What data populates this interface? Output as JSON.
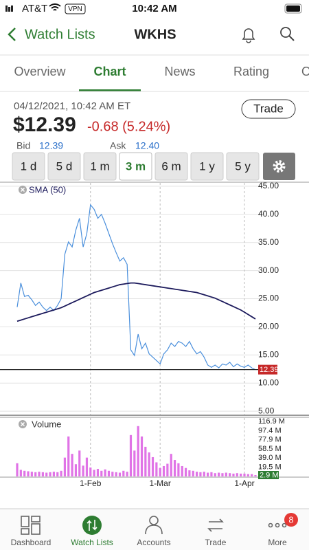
{
  "status_bar": {
    "carrier": "AT&T",
    "vpn": "VPN",
    "time": "10:42 AM"
  },
  "header": {
    "back": "Watch Lists",
    "title": "WKHS"
  },
  "tabs": {
    "items": [
      "Overview",
      "Chart",
      "News",
      "Rating",
      "O"
    ],
    "active": "Chart"
  },
  "quote": {
    "timestamp": "04/12/2021, 10:42 AM ET",
    "price": "$12.39",
    "change": "-0.68 (5.24%)",
    "trade": "Trade",
    "bid_label": "Bid",
    "bid": "12.39",
    "ask_label": "Ask",
    "ask": "12.40"
  },
  "ranges": {
    "items": [
      "1 d",
      "5 d",
      "1 m",
      "3 m",
      "6 m",
      "1 y",
      "5 y"
    ],
    "selected": "3 m"
  },
  "chart_data": [
    {
      "type": "line",
      "series": [
        {
          "color": "#4a8fdc",
          "values": [
            23.5,
            27.8,
            25.4,
            25.6,
            24.8,
            23.8,
            24.4,
            23.5,
            22.9,
            23.5,
            22.9,
            23.8,
            25.0,
            32.9,
            35.1,
            34.2,
            37.2,
            39.3,
            34.2,
            36.6,
            41.7,
            40.9,
            39.3,
            40.0,
            38.4,
            36.6,
            34.8,
            33.2,
            31.7,
            32.3,
            31.1,
            15.9,
            14.9,
            18.7,
            16.1,
            17.1,
            15.2,
            14.6,
            14.0,
            13.4,
            15.2,
            15.9,
            17.1,
            16.5,
            17.4,
            17.1,
            16.5,
            17.4,
            16.1,
            15.2,
            15.6,
            14.6,
            13.2,
            12.8,
            13.2,
            12.7,
            13.4,
            13.2,
            13.7,
            12.9,
            13.4,
            13.0,
            12.8,
            13.2,
            12.7,
            12.39
          ]
        },
        {
          "name": "SMA (50)",
          "color": "#1c1a5c",
          "values": [
            21.0,
            21.2,
            21.4,
            21.6,
            21.8,
            22.0,
            22.2,
            22.4,
            22.6,
            22.8,
            23.0,
            23.2,
            23.4,
            23.7,
            24.0,
            24.3,
            24.6,
            24.9,
            25.2,
            25.5,
            25.8,
            26.1,
            26.3,
            26.5,
            26.7,
            26.9,
            27.1,
            27.3,
            27.5,
            27.6,
            27.7,
            27.8,
            27.8,
            27.7,
            27.6,
            27.5,
            27.4,
            27.3,
            27.2,
            27.1,
            27.0,
            26.9,
            26.8,
            26.7,
            26.6,
            26.5,
            26.4,
            26.3,
            26.2,
            26.1,
            25.9,
            25.7,
            25.5,
            25.3,
            25.1,
            24.8,
            24.5,
            24.2,
            23.9,
            23.6,
            23.3,
            23.0,
            22.6,
            22.2,
            21.8,
            21.4
          ]
        }
      ],
      "last_price": 12.39,
      "last_price_color": "#c62828",
      "ylim": [
        4.4,
        45.6
      ],
      "yticks": [
        {
          "value": 5,
          "label": "5.00"
        },
        {
          "value": 10,
          "label": "10.00"
        },
        {
          "value": 15,
          "label": "15.00"
        },
        {
          "value": 20,
          "label": "20.00"
        },
        {
          "value": 25,
          "label": "25.00"
        },
        {
          "value": 30,
          "label": "30.00"
        },
        {
          "value": 35,
          "label": "35.00"
        },
        {
          "value": 40,
          "label": "40.00"
        },
        {
          "value": 45,
          "label": "45.00"
        }
      ],
      "grid": true
    },
    {
      "type": "bar",
      "categories": [
        null,
        null,
        null,
        null,
        null,
        null,
        null,
        null,
        null,
        null,
        null,
        null,
        null,
        null,
        null,
        null,
        null,
        null,
        null,
        null,
        "1-Feb",
        null,
        null,
        null,
        null,
        null,
        null,
        null,
        null,
        null,
        null,
        null,
        null,
        null,
        null,
        null,
        null,
        null,
        null,
        "1-Mar",
        null,
        null,
        null,
        null,
        null,
        null,
        null,
        null,
        null,
        null,
        null,
        null,
        null,
        null,
        null,
        null,
        null,
        null,
        null,
        null,
        null,
        null,
        "1-Apr",
        null,
        null,
        null
      ],
      "series": [
        {
          "name": "Volume",
          "color": "#e073e6",
          "values": [
            28,
            14,
            12,
            11,
            10,
            9,
            10,
            9,
            8,
            9,
            10,
            9,
            12,
            40,
            85,
            48,
            26,
            55,
            23,
            40,
            19,
            14,
            16,
            12,
            15,
            12,
            10,
            9,
            8,
            12,
            10,
            88,
            55,
            107,
            85,
            63,
            51,
            41,
            30,
            18,
            22,
            27,
            48,
            35,
            28,
            22,
            18,
            13,
            12,
            10,
            9,
            10,
            8,
            9,
            7,
            8,
            7,
            8,
            7,
            6,
            7,
            6,
            6,
            5,
            5,
            2.9
          ]
        }
      ],
      "last_volume": 2.9,
      "last_volume_label": "2.9 M",
      "last_volume_color": "#2e7d32",
      "ylim": [
        0,
        116.9
      ],
      "yticks": [
        {
          "value": 19.5,
          "label": "19.5 M"
        },
        {
          "value": 39.0,
          "label": "39.0 M"
        },
        {
          "value": 58.5,
          "label": "58.5 M"
        },
        {
          "value": 77.9,
          "label": "77.9 M"
        },
        {
          "value": 97.4,
          "label": "97.4 M"
        },
        {
          "value": 116.9,
          "label": "116.9 M"
        }
      ]
    }
  ],
  "tab_bar": {
    "items": [
      "Dashboard",
      "Watch Lists",
      "Accounts",
      "Trade",
      "More"
    ],
    "active": "Watch Lists",
    "badge": "8"
  }
}
